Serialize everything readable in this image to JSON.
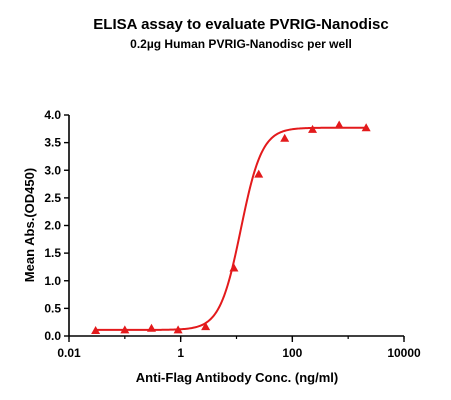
{
  "chart_data": {
    "type": "scatter",
    "title": "ELISA assay to evaluate PVRIG-Nanodisc",
    "subtitle": "0.2µg Human PVRIG-Nanodisc per well",
    "xlabel": "Anti-Flag Antibody Conc. (ng/ml)",
    "ylabel": "Mean Abs.(OD450)",
    "x_scale": "log",
    "xlim": [
      0.01,
      10000
    ],
    "ylim": [
      0,
      4.0
    ],
    "x_ticks": [
      0.01,
      1,
      100,
      10000
    ],
    "x_tick_labels": [
      "0.01",
      "1",
      "100",
      "10000"
    ],
    "y_ticks": [
      0,
      0.5,
      1.0,
      1.5,
      2.0,
      2.5,
      3.0,
      3.5,
      4.0
    ],
    "y_tick_labels": [
      "0.0",
      "0.5",
      "1.0",
      "1.5",
      "2.0",
      "2.5",
      "3.0",
      "3.5",
      "4.0"
    ],
    "grid": false,
    "series": [
      {
        "color": "#e31a1c",
        "marker": "triangle",
        "fit": "4PL sigmoid",
        "x": [
          0.03,
          0.1,
          0.3,
          0.9,
          2.8,
          9,
          25,
          73,
          230,
          690,
          2100
        ],
        "y": [
          0.1,
          0.11,
          0.14,
          0.11,
          0.17,
          1.23,
          2.93,
          3.58,
          3.74,
          3.82,
          3.77
        ]
      }
    ]
  }
}
